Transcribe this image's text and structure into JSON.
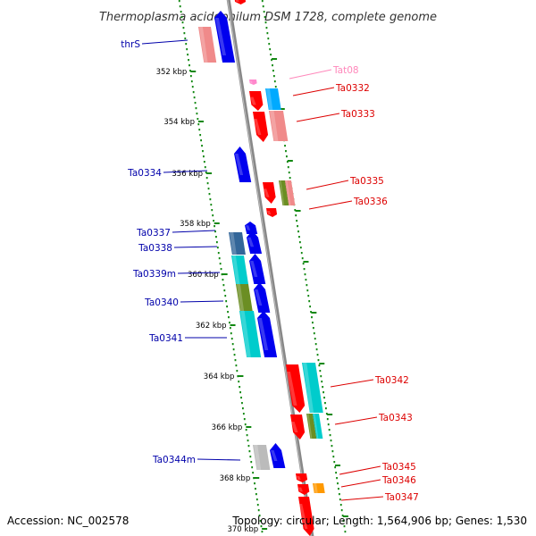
{
  "title": "Thermoplasma acidophilum DSM 1728, complete genome",
  "footer": {
    "accession": "Accession: NC_002578",
    "topology": "Topology: circular; Length: 1,564,906 bp; Genes: 1,530"
  },
  "colors": {
    "axis": "#888888",
    "ticks": "#118811",
    "dots": "#118811",
    "left_labels": "#0000aa",
    "right_labels": "#dd0000",
    "trna_label": "#ff88bb"
  },
  "scale_labels": [
    "352 kbp",
    "354 kbp",
    "356 kbp",
    "358 kbp",
    "360 kbp",
    "362 kbp",
    "364 kbp",
    "366 kbp",
    "368 kbp",
    "370 kbp"
  ],
  "left_genes": [
    "thrS",
    "Ta0334",
    "Ta0337",
    "Ta0338",
    "Ta0339m",
    "Ta0340",
    "Ta0341",
    "Ta0344m"
  ],
  "right_genes": [
    "Tat08",
    "Ta0332",
    "Ta0333",
    "Ta0335",
    "Ta0336",
    "Ta0342",
    "Ta0343",
    "Ta0345",
    "Ta0346",
    "Ta0347"
  ],
  "feature_colors": {
    "red": "#ff0000",
    "pink": "#f08a8a",
    "blue": "#0000ee",
    "lightblue": "#00aaff",
    "cyan": "#00cccc",
    "olive": "#6b8e23",
    "steel": "#336699",
    "gray": "#bbbbbb",
    "orange": "#ff9900",
    "trna": "#ff88cc"
  }
}
